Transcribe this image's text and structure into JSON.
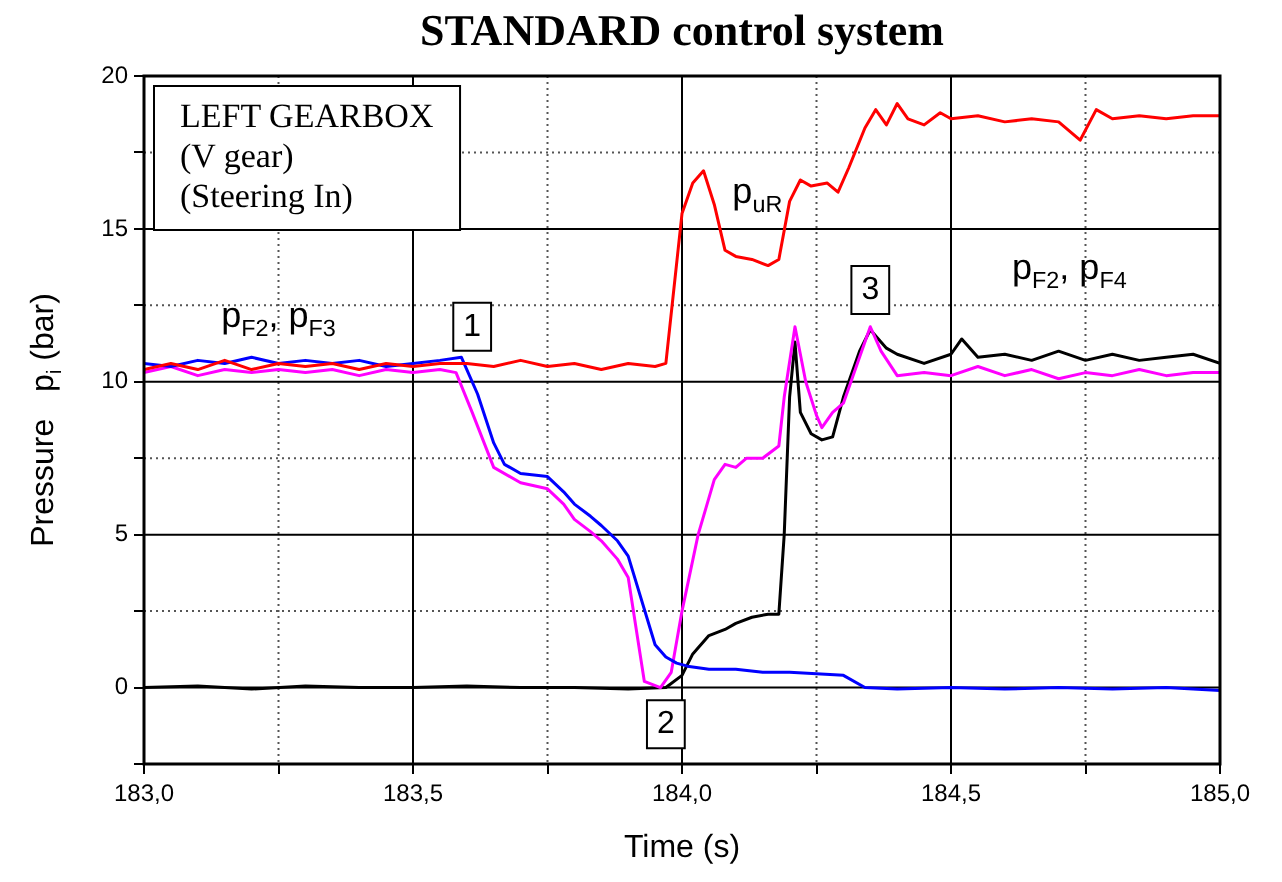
{
  "chart_data": {
    "type": "line",
    "title": "STANDARD control system",
    "xlabel": "Time (s)",
    "ylabel": "Pressure   p$_{i}$ (bar)",
    "xlim": [
      183.0,
      185.0
    ],
    "xticks": [
      {
        "value": 183.0,
        "label": "183,0"
      },
      {
        "value": 183.25,
        "label": null
      },
      {
        "value": 183.5,
        "label": "183,5"
      },
      {
        "value": 183.75,
        "label": null
      },
      {
        "value": 184.0,
        "label": "184,0"
      },
      {
        "value": 184.25,
        "label": null
      },
      {
        "value": 184.5,
        "label": "184,5"
      },
      {
        "value": 184.75,
        "label": null
      },
      {
        "value": 185.0,
        "label": "185,0"
      }
    ],
    "ylim": [
      -2.5,
      20
    ],
    "yticks": [
      {
        "value": -2.5,
        "label": null
      },
      0,
      {
        "value": 2.5,
        "label": null
      },
      5,
      {
        "value": 7.5,
        "label": null
      },
      10,
      {
        "value": 12.5,
        "label": null
      },
      15,
      {
        "value": 17.5,
        "label": null
      },
      20
    ],
    "grid": true,
    "legend": false,
    "marker": "none",
    "line_style": "solid",
    "series": [
      {
        "color": "#ff0000",
        "x": [
          183.0,
          183.05,
          183.1,
          183.15,
          183.2,
          183.25,
          183.3,
          183.35,
          183.4,
          183.45,
          183.5,
          183.55,
          183.6,
          183.65,
          183.7,
          183.75,
          183.8,
          183.85,
          183.9,
          183.95,
          183.97,
          184.0,
          184.02,
          184.04,
          184.06,
          184.08,
          184.1,
          184.13,
          184.16,
          184.18,
          184.2,
          184.22,
          184.24,
          184.27,
          184.29,
          184.31,
          184.34,
          184.36,
          184.38,
          184.4,
          184.42,
          184.45,
          184.48,
          184.5,
          184.55,
          184.6,
          184.65,
          184.7,
          184.74,
          184.77,
          184.8,
          184.85,
          184.9,
          184.95,
          185.0
        ],
        "values": [
          10.4,
          10.6,
          10.4,
          10.7,
          10.4,
          10.6,
          10.5,
          10.6,
          10.4,
          10.6,
          10.5,
          10.6,
          10.6,
          10.5,
          10.7,
          10.5,
          10.6,
          10.4,
          10.6,
          10.5,
          10.6,
          15.5,
          16.5,
          16.9,
          15.8,
          14.3,
          14.1,
          14.0,
          13.8,
          14.0,
          15.9,
          16.6,
          16.4,
          16.5,
          16.2,
          17.0,
          18.3,
          18.9,
          18.4,
          19.1,
          18.6,
          18.4,
          18.8,
          18.6,
          18.7,
          18.5,
          18.6,
          18.5,
          17.9,
          18.9,
          18.6,
          18.7,
          18.6,
          18.7,
          18.7
        ]
      },
      {
        "color": "#0000ff",
        "x": [
          183.0,
          183.05,
          183.1,
          183.15,
          183.2,
          183.25,
          183.3,
          183.35,
          183.4,
          183.45,
          183.5,
          183.55,
          183.59,
          183.62,
          183.65,
          183.67,
          183.7,
          183.75,
          183.78,
          183.8,
          183.83,
          183.85,
          183.88,
          183.9,
          183.95,
          183.97,
          183.99,
          184.01,
          184.05,
          184.1,
          184.15,
          184.2,
          184.25,
          184.3,
          184.34,
          184.4,
          184.5,
          184.6,
          184.7,
          184.8,
          184.9,
          185.0
        ],
        "values": [
          10.6,
          10.5,
          10.7,
          10.6,
          10.8,
          10.6,
          10.7,
          10.6,
          10.7,
          10.5,
          10.6,
          10.7,
          10.8,
          9.6,
          8.0,
          7.3,
          7.0,
          6.9,
          6.4,
          6.0,
          5.6,
          5.3,
          4.8,
          4.3,
          1.4,
          1.0,
          0.8,
          0.7,
          0.6,
          0.6,
          0.5,
          0.5,
          0.45,
          0.4,
          0,
          -0.05,
          0,
          -0.05,
          0,
          -0.05,
          0,
          -0.1
        ]
      },
      {
        "color": "#ff00ff",
        "x": [
          183.0,
          183.05,
          183.1,
          183.15,
          183.2,
          183.25,
          183.3,
          183.35,
          183.4,
          183.45,
          183.5,
          183.55,
          183.58,
          183.61,
          183.65,
          183.7,
          183.75,
          183.78,
          183.8,
          183.83,
          183.85,
          183.88,
          183.9,
          183.93,
          183.96,
          183.98,
          184.0,
          184.03,
          184.06,
          184.08,
          184.1,
          184.12,
          184.15,
          184.18,
          184.19,
          184.21,
          184.23,
          184.25,
          184.26,
          184.28,
          184.3,
          184.33,
          184.35,
          184.37,
          184.4,
          184.45,
          184.5,
          184.55,
          184.6,
          184.65,
          184.7,
          184.75,
          184.8,
          184.85,
          184.9,
          184.95,
          185.0
        ],
        "values": [
          10.3,
          10.5,
          10.2,
          10.4,
          10.3,
          10.4,
          10.3,
          10.4,
          10.2,
          10.4,
          10.3,
          10.4,
          10.3,
          9.0,
          7.2,
          6.7,
          6.5,
          6.0,
          5.5,
          5.1,
          4.8,
          4.2,
          3.6,
          0.2,
          0,
          0.5,
          2.5,
          5.0,
          6.8,
          7.3,
          7.2,
          7.5,
          7.5,
          7.9,
          9.5,
          11.8,
          10.0,
          8.9,
          8.5,
          9.0,
          9.3,
          10.8,
          11.8,
          11.0,
          10.2,
          10.3,
          10.2,
          10.5,
          10.2,
          10.4,
          10.1,
          10.3,
          10.2,
          10.4,
          10.2,
          10.3,
          10.3
        ]
      },
      {
        "color": "#000000",
        "x": [
          183.0,
          183.1,
          183.2,
          183.3,
          183.4,
          183.5,
          183.6,
          183.7,
          183.8,
          183.9,
          183.97,
          184.0,
          184.02,
          184.05,
          184.08,
          184.1,
          184.13,
          184.16,
          184.18,
          184.19,
          184.2,
          184.21,
          184.22,
          184.24,
          184.26,
          184.28,
          184.3,
          184.33,
          184.35,
          184.38,
          184.4,
          184.45,
          184.5,
          184.52,
          184.55,
          184.6,
          184.65,
          184.7,
          184.75,
          184.8,
          184.85,
          184.9,
          184.95,
          185.0
        ],
        "values": [
          0,
          0.05,
          -0.05,
          0.05,
          0,
          0,
          0.05,
          0,
          0,
          -0.05,
          0,
          0.4,
          1.1,
          1.7,
          1.9,
          2.1,
          2.3,
          2.4,
          2.4,
          5.0,
          9.5,
          11.3,
          9.0,
          8.3,
          8.1,
          8.2,
          9.5,
          11.0,
          11.7,
          11.1,
          10.9,
          10.6,
          10.9,
          11.4,
          10.8,
          10.9,
          10.7,
          11.0,
          10.7,
          10.9,
          10.7,
          10.8,
          10.9,
          10.6
        ]
      }
    ],
    "annotations": [
      "LEFT GEARBOX\n(V gear)\n(Steering In)",
      "p$_{F2}$, p$_{F3}$",
      {
        "text": "1",
        "x": 183.61,
        "y": 11.8
      },
      "p$_{uR}$",
      {
        "text": "3",
        "x": 184.35,
        "y": 13.0
      },
      {
        "text": "2",
        "x": 183.97,
        "y": -1.2
      },
      "p$_{F2}$, p$_{F4}$"
    ]
  }
}
